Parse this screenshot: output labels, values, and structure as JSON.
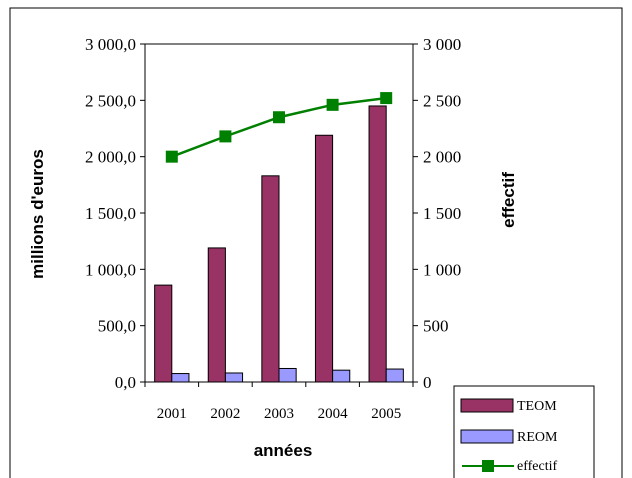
{
  "chart_data": {
    "type": "bar",
    "categories": [
      "2001",
      "2002",
      "2003",
      "2004",
      "2005"
    ],
    "series": [
      {
        "name": "TEOM",
        "kind": "bar",
        "axis": "left",
        "color": "#993366",
        "values": [
          860,
          1190,
          1830,
          2190,
          2450
        ]
      },
      {
        "name": "REOM",
        "kind": "bar",
        "axis": "left",
        "color": "#9999FF",
        "values": [
          75,
          80,
          120,
          105,
          115
        ]
      },
      {
        "name": "effectif",
        "kind": "line",
        "axis": "right",
        "color": "#008000",
        "values": [
          2000,
          2180,
          2350,
          2460,
          2520
        ]
      }
    ],
    "xlabel": "années",
    "ylabel": "millions d'euros",
    "y2label": "effectif",
    "ylim": [
      0,
      3000
    ],
    "y2lim": [
      0,
      3000
    ],
    "yticks": [
      "0,0",
      "500,0",
      "1 000,0",
      "1 500,0",
      "2 000,0",
      "2 500,0",
      "3 000,0"
    ],
    "y2ticks": [
      "0",
      "500",
      "1 000",
      "1 500",
      "2 000",
      "2 500",
      "3 000"
    ],
    "grid": false,
    "legend_position": "bottom-right"
  }
}
